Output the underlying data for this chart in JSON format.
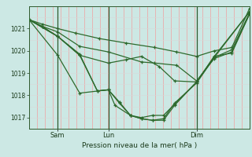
{
  "title": "Pression niveau de la mer( hPa )",
  "bg_color": "#cce8e4",
  "grid_v_color": "#f0a0a0",
  "grid_h_color": "#d8d8d8",
  "line_color": "#2d6a2d",
  "ylim": [
    1016.5,
    1022.0
  ],
  "yticks": [
    1017,
    1018,
    1019,
    1020,
    1021
  ],
  "day_labels": [
    "Sam",
    "Lun",
    "Dim"
  ],
  "day_positions": [
    0.13,
    0.36,
    0.76
  ],
  "n_vgrid": 28,
  "series": [
    [
      [
        0.0,
        0.06,
        0.13,
        0.21,
        0.32,
        0.44,
        0.57,
        0.67,
        0.76,
        0.84,
        0.92,
        1.0
      ],
      [
        1021.4,
        1021.2,
        1021.0,
        1020.8,
        1020.55,
        1020.35,
        1020.15,
        1019.95,
        1019.75,
        1020.0,
        1020.15,
        1021.9
      ]
    ],
    [
      [
        0.0,
        0.06,
        0.13,
        0.23,
        0.36,
        0.51,
        0.57,
        0.67,
        0.76,
        0.84,
        0.92,
        1.0
      ],
      [
        1021.4,
        1021.1,
        1020.85,
        1020.2,
        1019.95,
        1019.5,
        1019.45,
        1019.35,
        1018.65,
        1019.65,
        1019.95,
        1021.65
      ]
    ],
    [
      [
        0.0,
        0.06,
        0.13,
        0.23,
        0.31,
        0.36,
        0.41,
        0.46,
        0.51,
        0.56,
        0.61,
        0.66,
        0.76,
        0.84,
        0.92,
        1.0
      ],
      [
        1021.4,
        1021.1,
        1020.65,
        1019.85,
        1018.2,
        1018.25,
        1017.7,
        1017.1,
        1016.95,
        1016.88,
        1016.88,
        1017.55,
        1018.6,
        1019.7,
        1020.05,
        1021.7
      ]
    ],
    [
      [
        0.0,
        0.13,
        0.23,
        0.31,
        0.36,
        0.39,
        0.46,
        0.51,
        0.56,
        0.61,
        0.66,
        0.76,
        0.84,
        1.0
      ],
      [
        1021.4,
        1020.65,
        1019.8,
        1018.2,
        1018.25,
        1017.55,
        1017.1,
        1017.0,
        1017.1,
        1017.1,
        1017.6,
        1018.6,
        1019.75,
        1021.75
      ]
    ],
    [
      [
        0.0,
        0.13,
        0.23,
        0.36,
        0.41,
        0.46,
        0.51,
        0.56,
        0.61,
        0.66,
        0.76,
        0.84,
        1.0
      ],
      [
        1021.4,
        1019.8,
        1018.1,
        1018.25,
        1017.65,
        1017.1,
        1016.95,
        1016.88,
        1016.95,
        1017.65,
        1018.55,
        1019.7,
        1021.75
      ]
    ],
    [
      [
        0.0,
        0.13,
        0.23,
        0.36,
        0.44,
        0.51,
        0.59,
        0.66,
        0.76,
        0.84,
        0.92,
        1.0
      ],
      [
        1021.4,
        1020.65,
        1019.8,
        1019.45,
        1019.6,
        1019.75,
        1019.3,
        1018.65,
        1018.6,
        1019.75,
        1019.9,
        1021.65
      ]
    ]
  ]
}
